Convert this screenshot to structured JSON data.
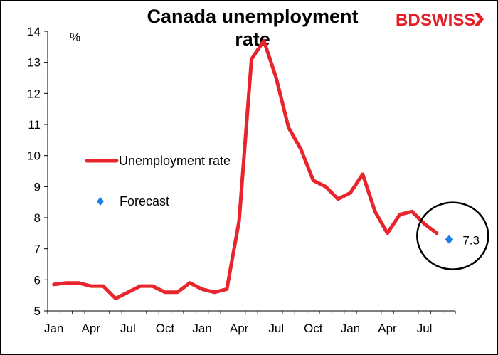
{
  "chart_data": {
    "type": "line",
    "title_line1": "Canada unemployment",
    "title_line2": "rate",
    "ylabel": "%",
    "ylim": [
      5,
      14
    ],
    "yticks": [
      5,
      6,
      7,
      8,
      9,
      10,
      11,
      12,
      13,
      14
    ],
    "xtick_labels": [
      "Jan",
      "Apr",
      "Jul",
      "Oct",
      "Jan",
      "Apr",
      "Jul",
      "Oct",
      "Jan",
      "Apr",
      "Jul"
    ],
    "series": [
      {
        "name": "Unemployment rate",
        "color": "#e8242c",
        "values": [
          5.85,
          5.9,
          5.9,
          5.8,
          5.8,
          5.4,
          5.6,
          5.8,
          5.8,
          5.6,
          5.6,
          5.9,
          5.7,
          5.6,
          5.7,
          7.9,
          13.1,
          13.7,
          12.5,
          10.9,
          10.2,
          9.2,
          9.0,
          8.6,
          8.8,
          9.4,
          8.2,
          7.5,
          8.1,
          8.2,
          7.8,
          7.5
        ]
      },
      {
        "name": "Forecast",
        "color": "#1f7fe8",
        "point_index": 32,
        "value": 7.3,
        "label": "7.3"
      }
    ]
  },
  "logo": {
    "bd": "BD",
    "swiss": "SWISS"
  }
}
